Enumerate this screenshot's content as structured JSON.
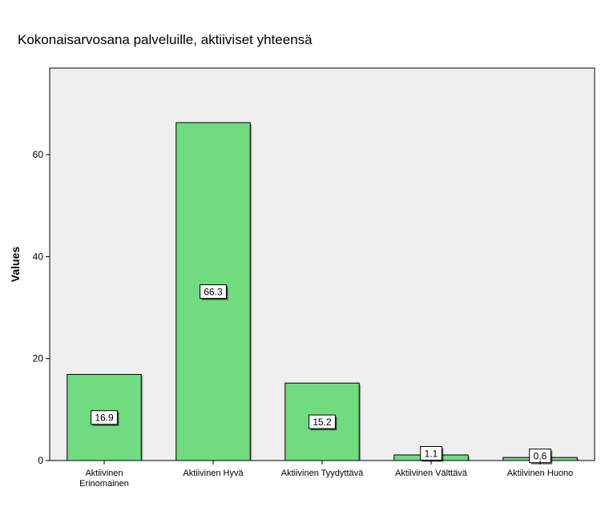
{
  "chart_data": {
    "type": "bar",
    "title": "Kokonaisarvosana palveluille, aktiiviset yhteensä",
    "ylabel": "Values",
    "xlabel": "",
    "categories": [
      [
        "Aktiivinen",
        "Erinomainen"
      ],
      [
        "Aktiivinen Hyvä"
      ],
      [
        "Aktiivinen Tyydyttävä"
      ],
      [
        "Aktiivinen Välttävä"
      ],
      [
        "Aktiivinen Huono"
      ]
    ],
    "values": [
      16.9,
      66.3,
      15.2,
      1.1,
      0.6
    ],
    "data_labels": [
      "16.9",
      "66.3",
      "15.2",
      "1.1",
      "0.6"
    ],
    "ylim": [
      0,
      77
    ],
    "yticks": [
      0,
      20,
      40,
      60
    ],
    "grid": false,
    "colors": {
      "bar": "#70DB80",
      "plot_bg": "#EFEFEF",
      "axis": "#000000",
      "label_bg": "#FFFFFF"
    }
  }
}
